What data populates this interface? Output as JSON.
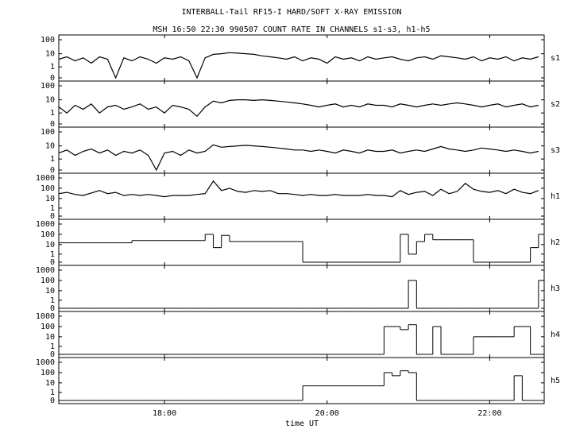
{
  "chart_data": {
    "type": "line",
    "title": "INTERBALL-Tail RF15-I HARD/SOFT X-RAY EMISSION",
    "subtitle": "MSH 16:50 22:30 990507  COUNT RATE IN CHANNELS s1-s3, h1-h5",
    "xlabel": "time UT",
    "line_color": "#000000",
    "xlim": [
      16.7,
      22.67
    ],
    "xticks": [
      {
        "value": 18,
        "label": "18:00"
      },
      {
        "value": 20,
        "label": "20:00"
      },
      {
        "value": 22,
        "label": "22:00"
      }
    ],
    "x": [
      16.7,
      16.8,
      16.9,
      17.0,
      17.1,
      17.2,
      17.3,
      17.4,
      17.5,
      17.6,
      17.7,
      17.8,
      17.9,
      18.0,
      18.1,
      18.2,
      18.3,
      18.4,
      18.5,
      18.6,
      18.7,
      18.8,
      18.9,
      19.0,
      19.1,
      19.2,
      19.3,
      19.4,
      19.5,
      19.6,
      19.7,
      19.8,
      19.9,
      20.0,
      20.1,
      20.2,
      20.3,
      20.4,
      20.5,
      20.6,
      20.7,
      20.8,
      20.9,
      21.0,
      21.1,
      21.2,
      21.3,
      21.4,
      21.5,
      21.6,
      21.7,
      21.8,
      21.9,
      22.0,
      22.1,
      22.2,
      22.3,
      22.4,
      22.5,
      22.6
    ],
    "series": [
      {
        "name": "s1",
        "ylim": [
          0,
          100
        ],
        "yticks": [
          100,
          10,
          1,
          0
        ],
        "values": [
          4,
          6,
          3,
          5,
          2,
          6,
          4,
          0,
          5,
          3,
          6,
          4,
          2,
          5,
          4,
          6,
          3,
          0,
          5,
          9,
          10,
          12,
          11,
          10,
          9,
          7,
          6,
          5,
          4,
          6,
          3,
          5,
          4,
          2,
          6,
          4,
          5,
          3,
          6,
          4,
          5,
          6,
          4,
          3,
          5,
          6,
          4,
          7,
          6,
          5,
          4,
          6,
          3,
          5,
          4,
          6,
          3,
          5,
          4,
          6
        ]
      },
      {
        "name": "s2",
        "ylim": [
          0,
          100
        ],
        "yticks": [
          100,
          10,
          1,
          0
        ],
        "values": [
          3,
          1,
          4,
          2,
          5,
          1,
          3,
          4,
          2,
          3,
          5,
          2,
          3,
          1,
          4,
          3,
          2,
          0.5,
          3,
          8,
          6,
          9,
          10,
          10,
          9,
          10,
          9,
          8,
          7,
          6,
          5,
          4,
          3,
          4,
          5,
          3,
          4,
          3,
          5,
          4,
          4,
          3,
          5,
          4,
          3,
          4,
          5,
          4,
          5,
          6,
          5,
          4,
          3,
          4,
          5,
          3,
          4,
          5,
          3,
          4
        ]
      },
      {
        "name": "s3",
        "ylim": [
          0,
          100
        ],
        "yticks": [
          100,
          10,
          1,
          0
        ],
        "values": [
          3,
          5,
          2,
          4,
          6,
          3,
          5,
          2,
          4,
          3,
          5,
          2,
          0,
          3,
          4,
          2,
          5,
          3,
          4,
          12,
          8,
          9,
          10,
          11,
          10,
          9,
          8,
          7,
          6,
          5,
          5,
          4,
          5,
          4,
          3,
          5,
          4,
          3,
          5,
          4,
          4,
          5,
          3,
          4,
          5,
          4,
          6,
          9,
          6,
          5,
          4,
          5,
          7,
          6,
          5,
          4,
          5,
          4,
          3,
          4
        ]
      },
      {
        "name": "h1",
        "ylim": [
          0,
          1000
        ],
        "yticks": [
          1000,
          100,
          10,
          1,
          0
        ],
        "values": [
          30,
          40,
          25,
          20,
          35,
          60,
          30,
          40,
          20,
          25,
          20,
          25,
          20,
          15,
          20,
          20,
          20,
          25,
          30,
          500,
          60,
          100,
          50,
          40,
          60,
          50,
          60,
          30,
          30,
          25,
          20,
          25,
          20,
          20,
          25,
          20,
          20,
          20,
          25,
          20,
          20,
          15,
          60,
          25,
          40,
          50,
          20,
          80,
          30,
          50,
          300,
          80,
          50,
          40,
          60,
          30,
          80,
          40,
          30,
          60
        ]
      },
      {
        "name": "h2",
        "ylim": [
          0,
          1000
        ],
        "yticks": [
          1000,
          100,
          10,
          1,
          0
        ],
        "drawstyle": "steps",
        "values": [
          15,
          15,
          15,
          15,
          15,
          15,
          15,
          15,
          15,
          25,
          25,
          25,
          25,
          25,
          25,
          25,
          25,
          25,
          100,
          5,
          80,
          20,
          20,
          20,
          20,
          20,
          20,
          20,
          20,
          20,
          0,
          0,
          0,
          0,
          0,
          0,
          0,
          0,
          0,
          0,
          0,
          0,
          100,
          1,
          20,
          100,
          30,
          30,
          30,
          30,
          30,
          0,
          0,
          0,
          0,
          0,
          0,
          0,
          5,
          100
        ]
      },
      {
        "name": "h3",
        "ylim": [
          0,
          1000
        ],
        "yticks": [
          1000,
          100,
          10,
          1,
          0
        ],
        "drawstyle": "steps",
        "values": [
          0,
          0,
          0,
          0,
          0,
          0,
          0,
          0,
          0,
          0,
          0,
          0,
          0,
          0,
          0,
          0,
          0,
          0,
          0,
          0,
          0,
          0,
          0,
          0,
          0,
          0,
          0,
          0,
          0,
          0,
          0,
          0,
          0,
          0,
          0,
          0,
          0,
          0,
          0,
          0,
          0,
          0,
          0,
          100,
          0,
          0,
          0,
          0,
          0,
          0,
          0,
          0,
          0,
          0,
          0,
          0,
          0,
          0,
          0,
          100
        ]
      },
      {
        "name": "h4",
        "ylim": [
          0,
          1000
        ],
        "yticks": [
          1000,
          100,
          10,
          1,
          0
        ],
        "drawstyle": "steps",
        "values": [
          0,
          0,
          0,
          0,
          0,
          0,
          0,
          0,
          0,
          0,
          0,
          0,
          0,
          0,
          0,
          0,
          0,
          0,
          0,
          0,
          0,
          0,
          0,
          0,
          0,
          0,
          0,
          0,
          0,
          0,
          0,
          0,
          0,
          0,
          0,
          0,
          0,
          0,
          0,
          0,
          100,
          100,
          50,
          150,
          0,
          0,
          100,
          0,
          0,
          0,
          0,
          10,
          10,
          10,
          10,
          10,
          100,
          100,
          0,
          0
        ]
      },
      {
        "name": "h5",
        "ylim": [
          0,
          1000
        ],
        "yticks": [
          1000,
          100,
          10,
          1,
          0
        ],
        "drawstyle": "steps",
        "values": [
          0,
          0,
          0,
          0,
          0,
          0,
          0,
          0,
          0,
          0,
          0,
          0,
          0,
          0,
          0,
          0,
          0,
          0,
          0,
          0,
          0,
          0,
          0,
          0,
          0,
          0,
          0,
          0,
          0,
          0,
          5,
          5,
          5,
          5,
          5,
          5,
          5,
          5,
          5,
          5,
          100,
          50,
          150,
          100,
          0,
          0,
          0,
          0,
          0,
          0,
          0,
          0,
          0,
          0,
          0,
          0,
          50,
          0,
          0,
          0
        ]
      }
    ]
  }
}
